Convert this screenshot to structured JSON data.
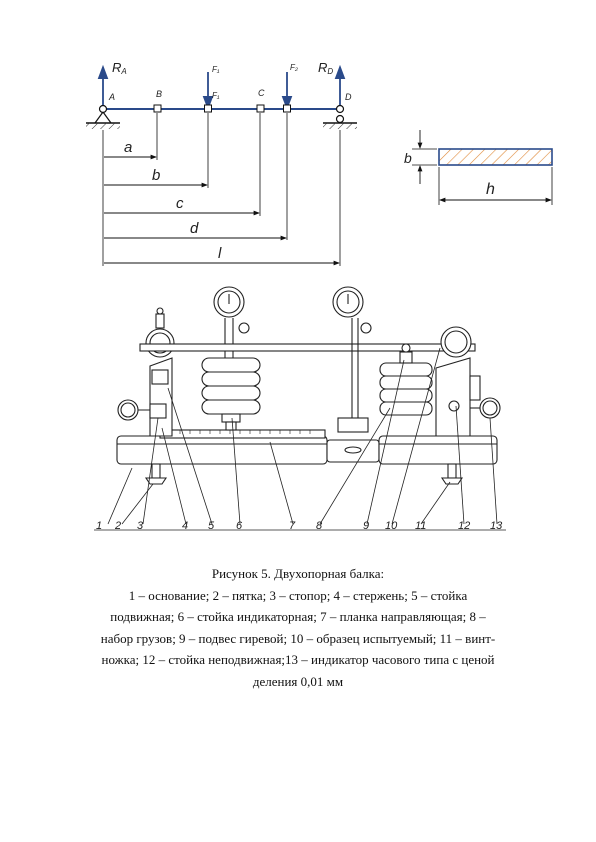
{
  "scheme": {
    "labels": {
      "ra": "R",
      "ra_sub": "A",
      "rd": "R",
      "rd_sub": "D",
      "f1_top": "F₁",
      "f2_top": "F₂",
      "f1_mid": "F₁",
      "point_a": "A",
      "point_b": "B",
      "point_c": "C",
      "point_d": "D"
    },
    "dimensions": {
      "a": "a",
      "b": "b",
      "c": "c",
      "d": "d",
      "l": "l"
    },
    "arrow_color": "#2a4a8a",
    "beam_color": "#2a4a8a"
  },
  "section": {
    "height_label": "b",
    "width_label": "h",
    "hatch_color": "#e08a3a"
  },
  "machine": {
    "part_numbers": [
      "1",
      "2",
      "3",
      "4",
      "5",
      "6",
      "7",
      "8",
      "9",
      "10",
      "11",
      "12",
      "13"
    ]
  },
  "caption": {
    "title": "Рисунок 5. Двухопорная балка:",
    "line1": "1 – основание; 2 – пятка; 3 – стопор; 4 – стержень; 5 – стойка",
    "line2": "подвижная; 6 – стойка индикаторная; 7 – планка направляющая; 8 –",
    "line3": "набор грузов; 9 – подвес гиревой; 10 – образец испытуемый; 11 – винт-",
    "line4": "ножка; 12 – стойка неподвижная;13 – индикатор часового типа с ценой",
    "line5": "деления 0,01 мм"
  }
}
